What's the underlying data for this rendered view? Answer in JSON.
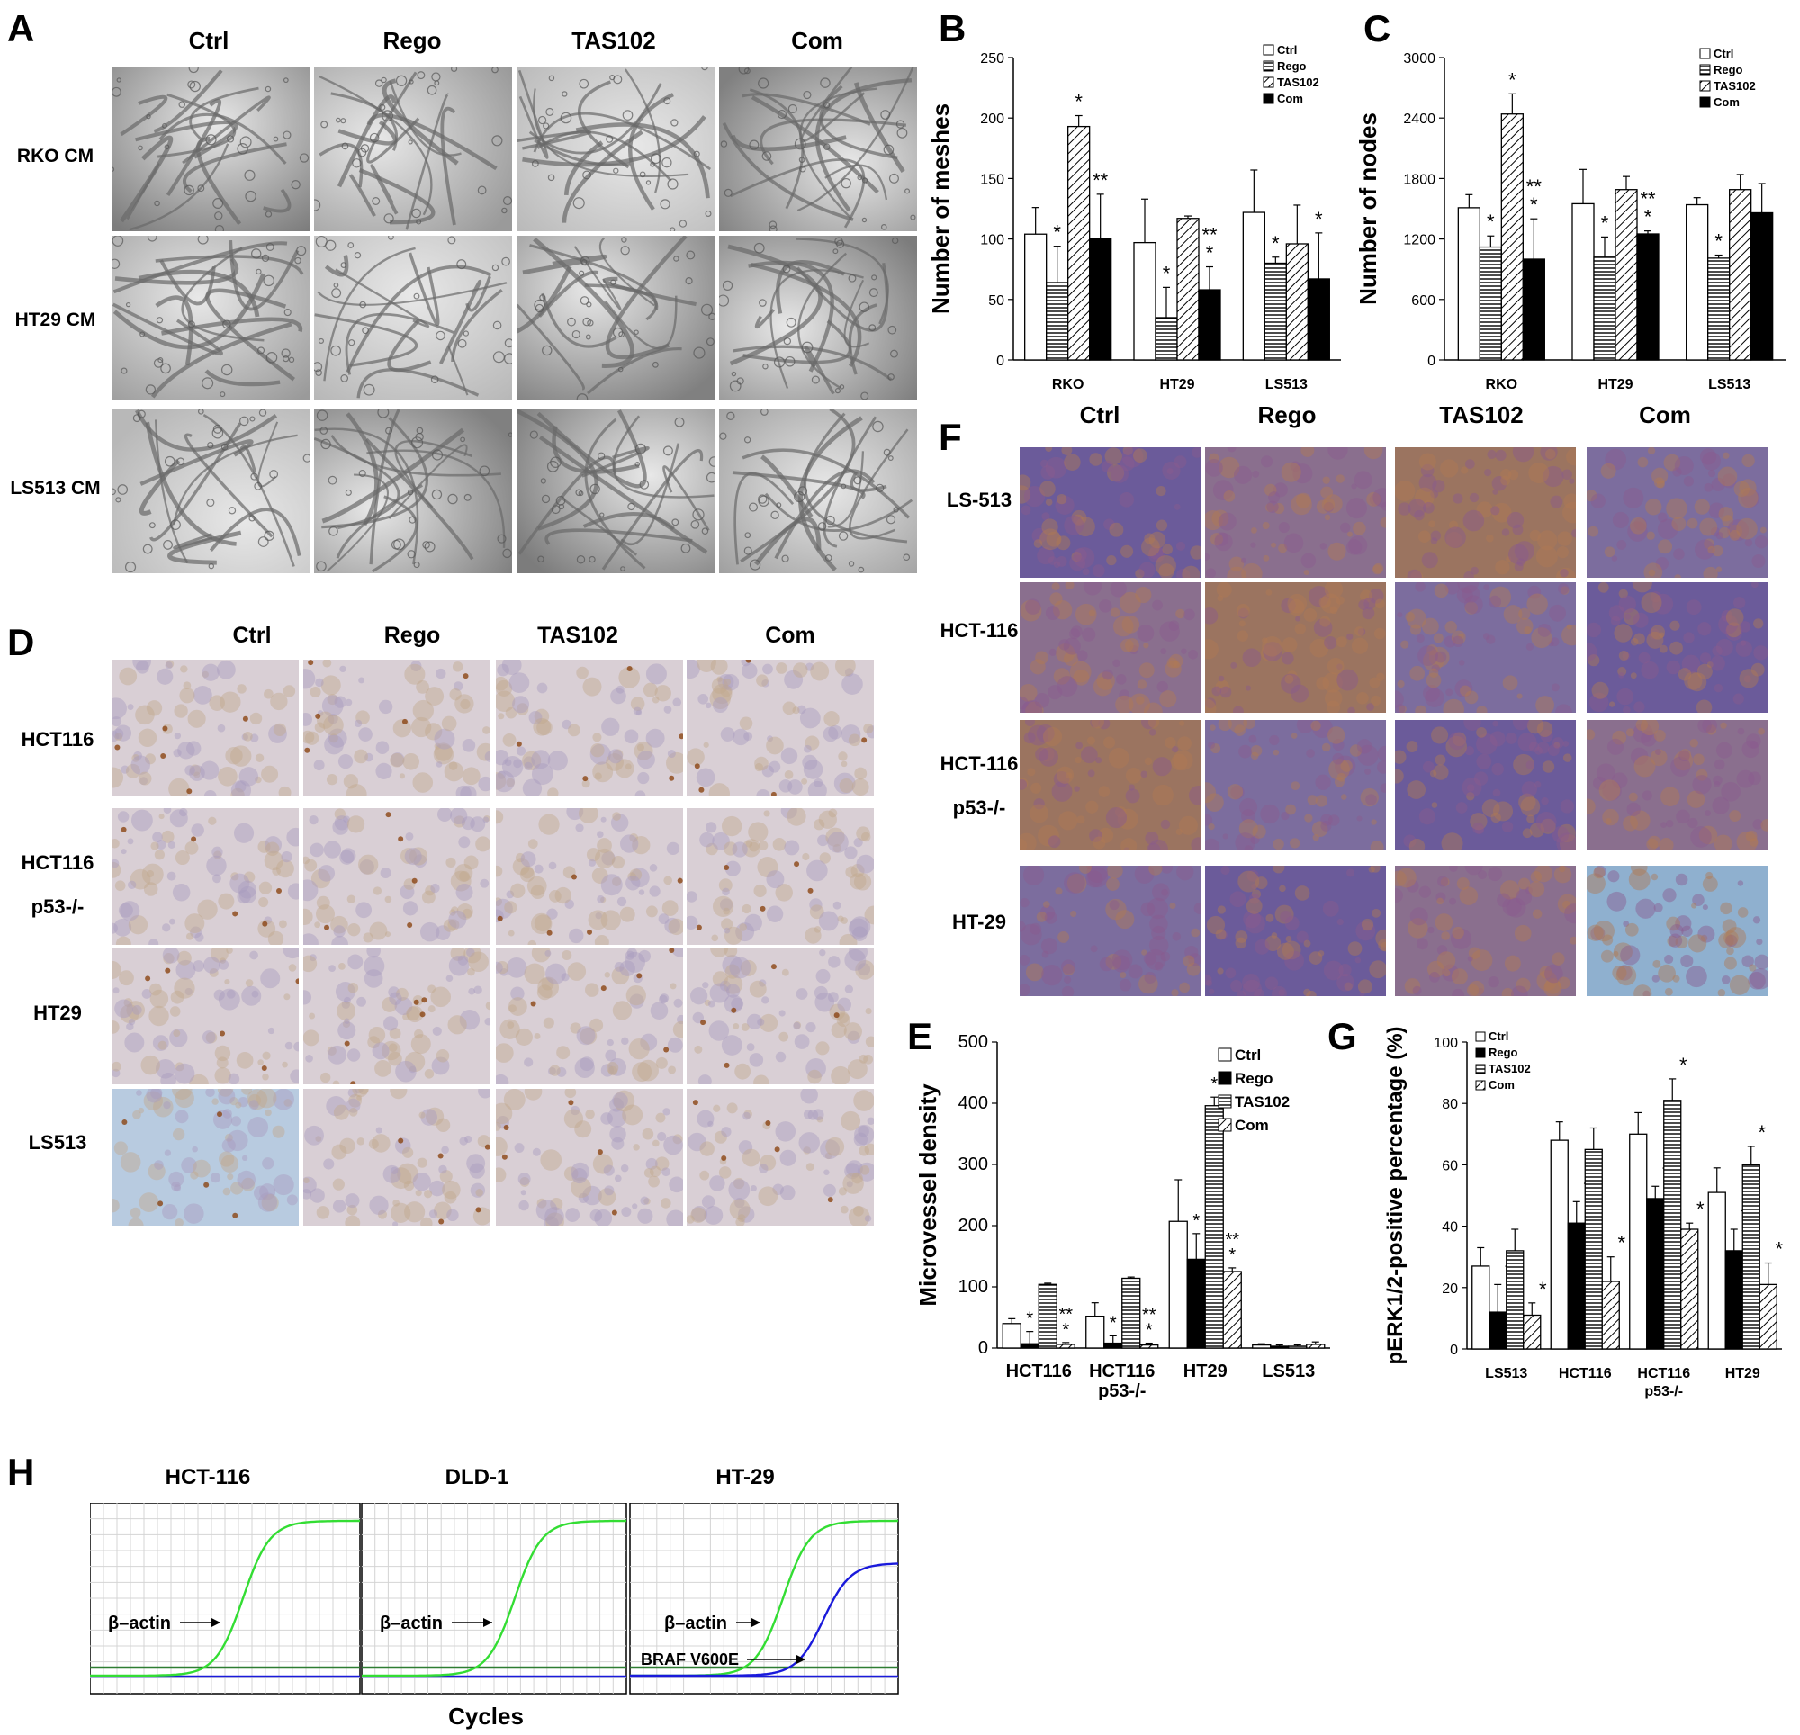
{
  "panel_labels": {
    "A": "A",
    "B": "B",
    "C": "C",
    "D": "D",
    "E": "E",
    "F": "F",
    "G": "G",
    "H": "H"
  },
  "panel_a": {
    "columns": [
      "Ctrl",
      "Rego",
      "TAS102",
      "Com"
    ],
    "rows": [
      "RKO CM",
      "HT29 CM",
      "LS513 CM"
    ]
  },
  "panel_d": {
    "columns": [
      "Ctrl",
      "Rego",
      "TAS102",
      "Com"
    ],
    "rows": [
      [
        "HCT116"
      ],
      [
        "HCT116",
        "p53-/-"
      ],
      [
        "HT29"
      ],
      [
        "LS513"
      ]
    ]
  },
  "panel_f": {
    "columns": [
      "Ctrl",
      "Rego",
      "TAS102",
      "Com"
    ],
    "rows": [
      [
        "LS-513"
      ],
      [
        "HCT-116"
      ],
      [
        "HCT-116",
        "p53-/-"
      ],
      [
        "HT-29"
      ]
    ]
  },
  "panel_h": {
    "titles": [
      "HCT-116",
      "DLD-1",
      "HT-29"
    ],
    "xlabel": "Cycles",
    "curve_labels": {
      "actin": "β–actin",
      "braf": "BRAF V600E"
    },
    "colors": {
      "actin": "#33dd33",
      "braf": "#1a1adb",
      "baseline_green": "#2e7d32",
      "baseline_blue": "#1a1adb"
    }
  },
  "chart_data": [
    {
      "id": "B",
      "type": "bar",
      "ylabel": "Number of meshes",
      "ylim": [
        0,
        250
      ],
      "yticks": [
        0,
        50,
        100,
        150,
        200,
        250
      ],
      "categories": [
        "RKO",
        "HT29",
        "LS513"
      ],
      "legend": [
        "Ctrl",
        "Rego",
        "TAS102",
        "Com"
      ],
      "legend_position": "top-right",
      "series": [
        {
          "name": "Ctrl",
          "values": [
            104,
            97,
            122
          ],
          "errors": [
            22,
            36,
            35
          ]
        },
        {
          "name": "Rego",
          "values": [
            64,
            35,
            80
          ],
          "errors": [
            30,
            25,
            5
          ]
        },
        {
          "name": "TAS102",
          "values": [
            193,
            117,
            96
          ],
          "errors": [
            9,
            2,
            32
          ]
        },
        {
          "name": "Com",
          "values": [
            100,
            58,
            67
          ],
          "errors": [
            37,
            19,
            38
          ]
        }
      ],
      "annotations": [
        [
          "",
          "*",
          "*",
          "**"
        ],
        [
          "",
          "*",
          "",
          "**\n*"
        ],
        [
          "",
          "*",
          "",
          "*"
        ]
      ]
    },
    {
      "id": "C",
      "type": "bar",
      "ylabel": "Number of nodes",
      "ylim": [
        0,
        3000
      ],
      "yticks": [
        0,
        600,
        1200,
        1800,
        2400,
        3000
      ],
      "categories": [
        "RKO",
        "HT29",
        "LS513"
      ],
      "legend": [
        "Ctrl",
        "Rego",
        "TAS102",
        "Com"
      ],
      "legend_position": "top-right",
      "series": [
        {
          "name": "Ctrl",
          "values": [
            1510,
            1550,
            1540
          ],
          "errors": [
            130,
            340,
            70
          ]
        },
        {
          "name": "Rego",
          "values": [
            1120,
            1020,
            1010
          ],
          "errors": [
            110,
            200,
            30
          ]
        },
        {
          "name": "TAS102",
          "values": [
            2440,
            1690,
            1690
          ],
          "errors": [
            200,
            130,
            150
          ]
        },
        {
          "name": "Com",
          "values": [
            1000,
            1250,
            1460
          ],
          "errors": [
            400,
            30,
            290
          ]
        }
      ],
      "annotations": [
        [
          "",
          "*",
          "*",
          "**\n*"
        ],
        [
          "",
          "*",
          "",
          "**\n*"
        ],
        [
          "",
          "*",
          "",
          ""
        ]
      ]
    },
    {
      "id": "E",
      "type": "bar",
      "ylabel": "Microvessel density",
      "ylim": [
        0,
        500
      ],
      "yticks": [
        0,
        100,
        200,
        300,
        400,
        500
      ],
      "categories": [
        "HCT116",
        "HCT116\np53-/-",
        "HT29",
        "LS513"
      ],
      "legend": [
        "Ctrl",
        "Rego",
        "TAS102",
        "Com"
      ],
      "legend_position": "top-right",
      "series": [
        {
          "name": "Ctrl",
          "values": [
            40,
            52,
            207,
            5
          ],
          "errors": [
            8,
            22,
            68,
            2
          ]
        },
        {
          "name": "Rego",
          "values": [
            7,
            8,
            145,
            3
          ],
          "errors": [
            20,
            12,
            42,
            2
          ]
        },
        {
          "name": "TAS102",
          "values": [
            104,
            114,
            396,
            3
          ],
          "errors": [
            2,
            2,
            14,
            2
          ]
        },
        {
          "name": "Com",
          "values": [
            6,
            5,
            125,
            6
          ],
          "errors": [
            3,
            3,
            6,
            4
          ]
        }
      ],
      "annotations": [
        [
          "",
          "*",
          "",
          "**\n*"
        ],
        [
          "",
          "*",
          "",
          "**\n*"
        ],
        [
          "",
          "*",
          "*",
          "**\n*"
        ],
        [
          "",
          "",
          "",
          ""
        ]
      ]
    },
    {
      "id": "G",
      "type": "bar",
      "ylabel": "pERK1/2-positive percentage (%)",
      "ylim": [
        0,
        100
      ],
      "yticks": [
        0,
        20,
        40,
        60,
        80,
        100
      ],
      "categories": [
        "LS513",
        "HCT116",
        "HCT116\np53-/-",
        "HT29"
      ],
      "legend": [
        "Ctrl",
        "Rego",
        "TAS102",
        "Com"
      ],
      "legend_position": "top-left",
      "series": [
        {
          "name": "Ctrl",
          "values": [
            27,
            68,
            70,
            51
          ],
          "errors": [
            6,
            6,
            7,
            8
          ]
        },
        {
          "name": "Rego",
          "values": [
            12,
            41,
            49,
            32
          ],
          "errors": [
            9,
            7,
            4,
            7
          ]
        },
        {
          "name": "TAS102",
          "values": [
            32,
            65,
            81,
            60
          ],
          "errors": [
            7,
            7,
            7,
            6
          ]
        },
        {
          "name": "Com",
          "values": [
            11,
            22,
            39,
            21
          ],
          "errors": [
            4,
            8,
            2,
            7
          ]
        }
      ],
      "annotations": [
        [
          "",
          "*",
          "",
          "*"
        ],
        [
          "",
          "*",
          "",
          "*"
        ],
        [
          "",
          "*",
          "*",
          "*"
        ],
        [
          "",
          "*",
          "*",
          "*"
        ]
      ]
    }
  ]
}
